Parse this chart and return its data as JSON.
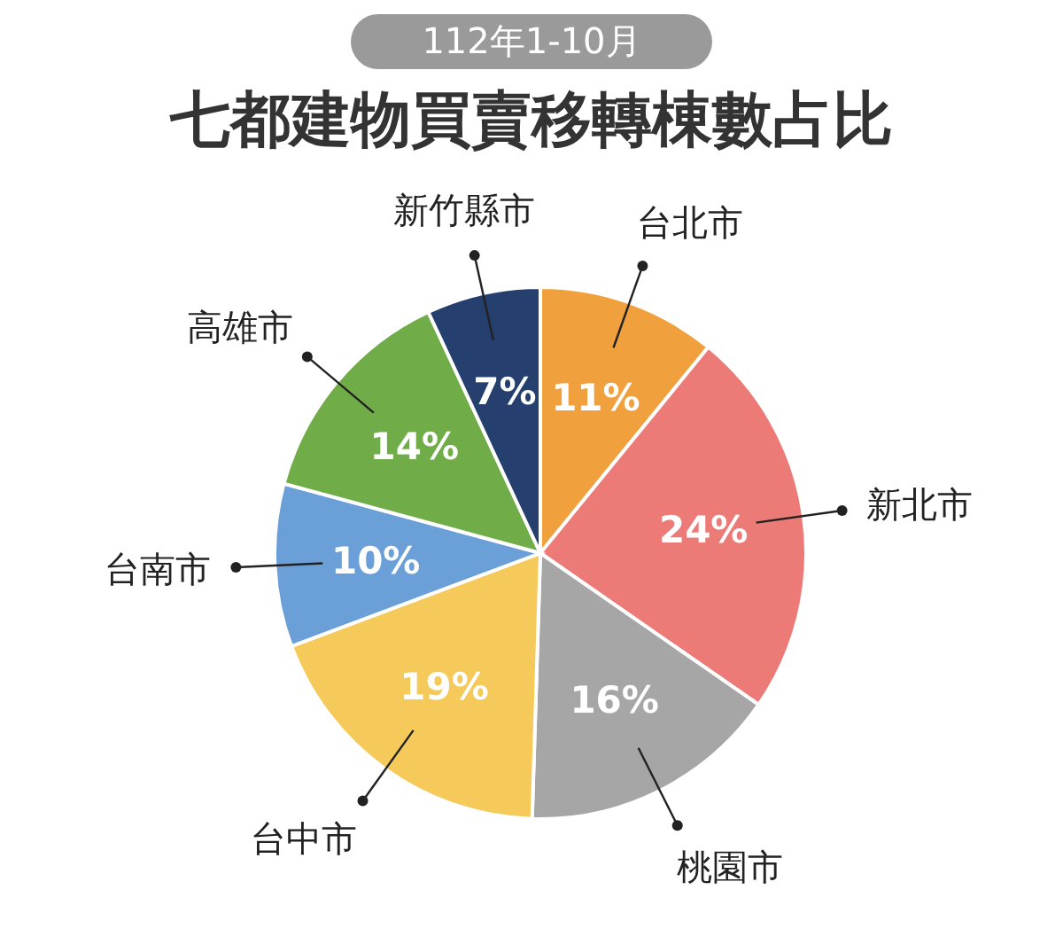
{
  "chart_data": {
    "type": "pie",
    "title": "七都建物買賣移轉棟數占比",
    "subtitle": "112年1-10月",
    "categories": [
      "台北市",
      "新北市",
      "桃園市",
      "台中市",
      "台南市",
      "高雄市",
      "新竹縣市"
    ],
    "values": [
      11,
      24,
      16,
      19,
      10,
      14,
      7
    ],
    "colors": [
      "#f0a03c",
      "#ec7b77",
      "#a6a6a6",
      "#f5c95a",
      "#6a9fd8",
      "#70ac48",
      "#253f6e"
    ],
    "value_labels": [
      "11%",
      "24%",
      "16%",
      "19%",
      "10%",
      "14%",
      "7%"
    ],
    "legend": false
  }
}
